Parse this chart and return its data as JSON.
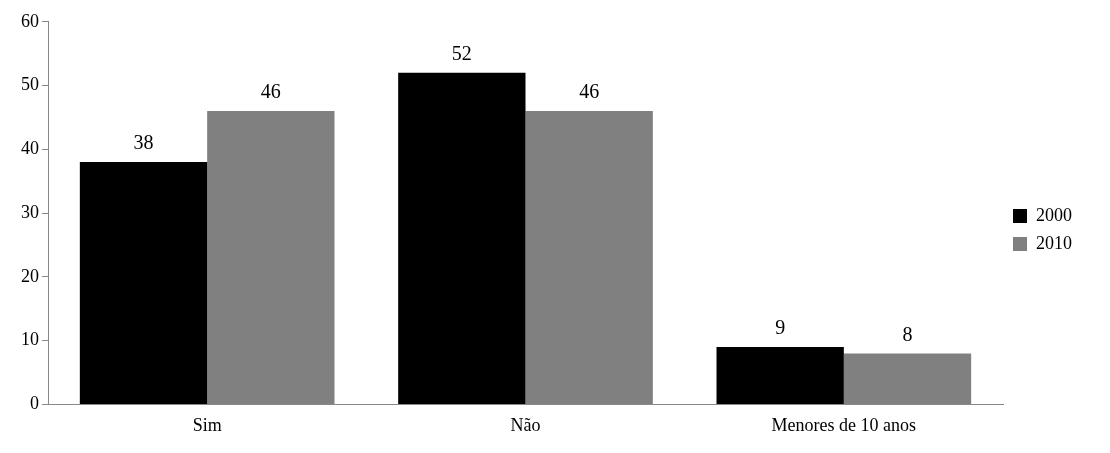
{
  "chart_data": {
    "type": "bar",
    "categories": [
      "Sim",
      "Não",
      "Menores de 10 anos"
    ],
    "series": [
      {
        "name": "2000",
        "color": "#000000",
        "values": [
          38,
          52,
          9
        ]
      },
      {
        "name": "2010",
        "color": "#808080",
        "values": [
          46,
          46,
          8
        ]
      }
    ],
    "ylim": [
      0,
      60
    ],
    "yticks": [
      0,
      10,
      20,
      30,
      40,
      50,
      60
    ],
    "grid": false,
    "legend": "right",
    "data_labels": true
  }
}
